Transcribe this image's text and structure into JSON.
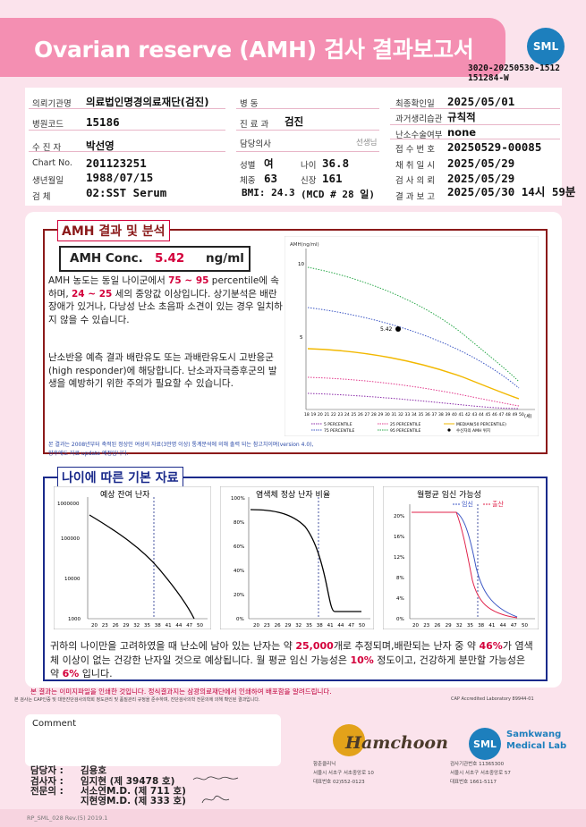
{
  "header": {
    "title": "Ovarian reserve (AMH) 검사 결과보고서",
    "logo": "SML",
    "report_no_1": "3020-20250530-1512",
    "report_no_2": "151284-W"
  },
  "info": {
    "institution_label": "의뢰기관명",
    "institution": "의료법인명경의료재단(검진)",
    "ward_label": "병 동",
    "final_label": "최종확인일",
    "final": "2025/05/01",
    "hospital_code_label": "병원코드",
    "hospital_code": "15186",
    "dept_label": "진 료 과",
    "dept": "검진",
    "past_label": "과거생리습관",
    "past": "규칙적",
    "patient_label": "수 진 자",
    "patient": "박선영",
    "physician_label": "담당의사",
    "physician": "선생님",
    "ovary_label": "난소수술여부",
    "ovary": "none",
    "receipt_label": "접 수 번 호",
    "receipt": "20250529-00085",
    "chart_label": "Chart No.",
    "chart": "201123251",
    "sex_label": "성별",
    "sex": "여",
    "age_label": "나이",
    "age": "36.8",
    "sample_date_label": "채 취 일 시",
    "sample_date": "2025/05/29",
    "birth_label": "생년월일",
    "birth": "1988/07/15",
    "weight_label": "체중",
    "weight": "63",
    "height_label": "신장",
    "height": "161",
    "request_label": "검 사 의 뢰",
    "request": "2025/05/29",
    "specimen_label": "검 체",
    "specimen": "02:SST Serum",
    "bmi": "BMI: 24.3",
    "mcd": "(MCD # 28 일)",
    "result_label": "결 과 보 고",
    "result": "2025/05/30 14시 59분"
  },
  "amh": {
    "section_title": "AMH 결과 및 분석",
    "conc_label": "AMH Conc.",
    "conc_value": "5.42",
    "conc_unit": "ng/ml",
    "p1a": "AMH 농도는 동일 나이군에서 ",
    "p1b": "75 ~ 95",
    "p1c": " percentile에 속하며, ",
    "p1d": "24 ~ 25",
    "p1e": " 세의 중앙값 이상입니다. 상기분석은 배란장애가 있거나, 다낭성 난소 초음파 소견이 있는 경우 일치하지 않을 수 있습니다.",
    "p2": "난소반응 예측 결과 배란유도 또는 과배란유도시 고반응군 (high responder)에 해당합니다. 난소과자극증후군의 발생을 예방하기 위한 주의가 필요할 수 있습니다.",
    "note1": "본 결과는 2008년부터 축적된 정상인 여성의 자료(3만명 이상) 통계분석에 의해 출력 되는 참고치이며(version 4.0),",
    "note2": "향후에도 자료 update 예정입니다."
  },
  "amh_chart": {
    "ylabel": "AMH(ng/ml)",
    "y_ticks": [
      "10",
      "5"
    ],
    "x_unit": "(세)",
    "point_label": "5.42",
    "legend": [
      "5 PERCENTILE",
      "25 PERCENTILE",
      "MEDIAN(50 PERCENTILE)",
      "75 PERCENTILE",
      "95 PERCENTILE",
      "수신자의 AMH 위치"
    ]
  },
  "basic": {
    "section_title": "나이에 따른 기본 자료",
    "c1_title": "예상 잔여 난자",
    "c1_y": [
      "1000000",
      "100000",
      "10000",
      "1000"
    ],
    "c2_title": "염색체 정상 난자 비율",
    "c2_y": [
      "100%",
      "80%",
      "60%",
      "40%",
      "20%",
      "0%"
    ],
    "c3_title": "월평균 임신 가능성",
    "c3_y": [
      "20%",
      "16%",
      "12%",
      "8%",
      "4%",
      "0%"
    ],
    "c3_leg1": "임신",
    "c3_leg2": "출산",
    "x_ticks": [
      "20",
      "23",
      "26",
      "29",
      "32",
      "35",
      "38",
      "41",
      "44",
      "47",
      "50"
    ],
    "s1a": "귀하의 나이만을 고려하였을 때 난소에 남아 있는 난자는 약 ",
    "s1b": "25,000",
    "s1c": "개로 추정되며,배란되는 난자 중 약 ",
    "s1d": "46%",
    "s1e": "가 염색체 이상이 없는 건강한 난자일 것으로 예상됩니다. 월 평균 임신 가능성은 ",
    "s1f": "10%",
    "s1g": " 정도이고, 건강하게 분만할 가능성은 약 ",
    "s1h": "6%",
    "s1i": " 입니다."
  },
  "footnotes": {
    "f1": "본 결과는 이미지파일을 인쇄한 것입니다. 정식결과지는 삼광의료재단에서 인쇄하여 배포함을 알려드립니다.",
    "f2": "본 검사는 CAP인증 및 대한진단검사의학회 정도관리 및 품질관리 규정을 준수하며, 진단검사의학 전문의에 의해 확인된 결과입니다.",
    "f3": "CAP Accredited Laboratory 89944-01"
  },
  "comment": {
    "label": "Comment"
  },
  "signers": {
    "l1": "담당자 :",
    "v1": "김용호",
    "l2": "검사자 :",
    "v2": "임지현 (제 39478 호)",
    "l3": "전문의 :",
    "v3": "서소연M.D. (제 711 호)",
    "v4": "지현영M.D. (제 333 호)"
  },
  "hamchoon": {
    "name": "Hamchoon",
    "line1": "함춘클리닉",
    "line2": "서울시 서초구 서초중앙로 10",
    "line3": "대표번호 02)552-0123"
  },
  "sml_bottom": {
    "name1": "Samkwang",
    "name2": "Medical Lab",
    "line1": "검사기관번호 11365300",
    "line2": "서울시 서초구 서초중앙로 57",
    "line3": "대표번호 1661-5117"
  },
  "form_code": "RP_SML_028 Rev.(5) 2019.1",
  "colors": {
    "banner": "#f48fb2",
    "page": "#fbe3ec",
    "accent_red": "#d3003b",
    "amh_box": "#8b1a1a",
    "basic_box": "#1a2a8b",
    "sml_blue": "#1d7fbd"
  }
}
